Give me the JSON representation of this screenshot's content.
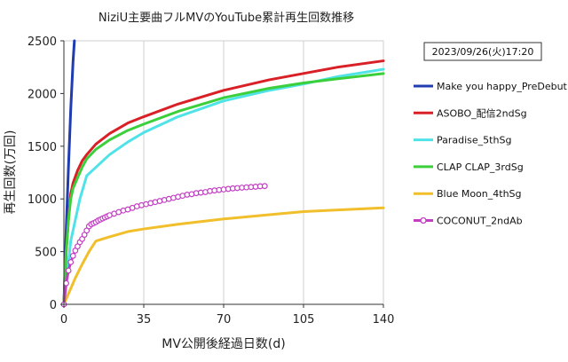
{
  "chart_data": {
    "type": "line",
    "title": "NiziU主要曲フルMVのYouTube累計再生回数推移",
    "xlabel": "MV公開後経過日数(d)",
    "ylabel": "再生回数(万回)",
    "xlim": [
      0,
      140
    ],
    "ylim": [
      0,
      2500
    ],
    "xticks": [
      0,
      35,
      70,
      105,
      140
    ],
    "yticks": [
      0,
      500,
      1000,
      1500,
      2000,
      2500
    ],
    "timestamp": "2023/09/26(火)17:20",
    "legend_position": "right",
    "grid": "vertical",
    "series": [
      {
        "name": "Make you happy_PreDebut",
        "color": "#1f3cb0",
        "marker": "none",
        "points": [
          [
            0,
            0
          ],
          [
            1,
            700
          ],
          [
            2,
            1300
          ],
          [
            3,
            1850
          ],
          [
            4,
            2300
          ],
          [
            4.6,
            2500
          ]
        ]
      },
      {
        "name": "ASOBO_配信2ndSg",
        "color": "#d92027",
        "marker": "none",
        "points": [
          [
            0,
            0
          ],
          [
            1,
            500
          ],
          [
            2,
            800
          ],
          [
            3,
            1050
          ],
          [
            4,
            1150
          ],
          [
            6,
            1270
          ],
          [
            8,
            1360
          ],
          [
            10,
            1420
          ],
          [
            14,
            1520
          ],
          [
            20,
            1620
          ],
          [
            28,
            1720
          ],
          [
            35,
            1780
          ],
          [
            50,
            1900
          ],
          [
            70,
            2030
          ],
          [
            90,
            2130
          ],
          [
            105,
            2190
          ],
          [
            120,
            2250
          ],
          [
            140,
            2310
          ]
        ]
      },
      {
        "name": "Paradise_5thSg",
        "color": "#4fe3e8",
        "marker": "none",
        "points": [
          [
            0,
            0
          ],
          [
            1,
            200
          ],
          [
            2,
            400
          ],
          [
            3,
            600
          ],
          [
            5,
            800
          ],
          [
            7,
            1000
          ],
          [
            10,
            1220
          ],
          [
            14,
            1300
          ],
          [
            20,
            1420
          ],
          [
            28,
            1540
          ],
          [
            35,
            1630
          ],
          [
            50,
            1780
          ],
          [
            70,
            1930
          ],
          [
            90,
            2030
          ],
          [
            105,
            2090
          ],
          [
            120,
            2160
          ],
          [
            140,
            2230
          ]
        ]
      },
      {
        "name": "CLAP CLAP_3rdSg",
        "color": "#3ccf3c",
        "marker": "none",
        "points": [
          [
            0,
            0
          ],
          [
            1,
            500
          ],
          [
            2,
            800
          ],
          [
            3,
            1000
          ],
          [
            4,
            1100
          ],
          [
            6,
            1200
          ],
          [
            8,
            1300
          ],
          [
            10,
            1380
          ],
          [
            14,
            1470
          ],
          [
            20,
            1560
          ],
          [
            28,
            1650
          ],
          [
            35,
            1710
          ],
          [
            50,
            1830
          ],
          [
            70,
            1960
          ],
          [
            90,
            2050
          ],
          [
            105,
            2100
          ],
          [
            120,
            2140
          ],
          [
            140,
            2190
          ]
        ]
      },
      {
        "name": "Blue Moon_4thSg",
        "color": "#f1bf2b",
        "marker": "none",
        "points": [
          [
            0,
            0
          ],
          [
            2,
            100
          ],
          [
            5,
            250
          ],
          [
            8,
            380
          ],
          [
            11,
            500
          ],
          [
            14,
            600
          ],
          [
            20,
            640
          ],
          [
            28,
            690
          ],
          [
            35,
            715
          ],
          [
            50,
            760
          ],
          [
            70,
            810
          ],
          [
            90,
            850
          ],
          [
            105,
            880
          ],
          [
            120,
            895
          ],
          [
            140,
            915
          ]
        ]
      },
      {
        "name": "COCONUT_2ndAb",
        "color": "#c23fc2",
        "marker": "circle",
        "points": [
          [
            0,
            0
          ],
          [
            1,
            200
          ],
          [
            2,
            320
          ],
          [
            3,
            400
          ],
          [
            4,
            460
          ],
          [
            5,
            510
          ],
          [
            6,
            550
          ],
          [
            7,
            590
          ],
          [
            8,
            620
          ],
          [
            9,
            660
          ],
          [
            10,
            700
          ],
          [
            11,
            740
          ],
          [
            12,
            760
          ],
          [
            13,
            770
          ],
          [
            14,
            780
          ],
          [
            15,
            795
          ],
          [
            16,
            805
          ],
          [
            17,
            815
          ],
          [
            18,
            825
          ],
          [
            19,
            835
          ],
          [
            20,
            845
          ],
          [
            22,
            860
          ],
          [
            24,
            875
          ],
          [
            26,
            890
          ],
          [
            28,
            900
          ],
          [
            30,
            915
          ],
          [
            32,
            930
          ],
          [
            34,
            940
          ],
          [
            36,
            950
          ],
          [
            38,
            960
          ],
          [
            40,
            970
          ],
          [
            42,
            980
          ],
          [
            44,
            990
          ],
          [
            46,
            1000
          ],
          [
            48,
            1010
          ],
          [
            50,
            1020
          ],
          [
            52,
            1030
          ],
          [
            54,
            1040
          ],
          [
            56,
            1045
          ],
          [
            58,
            1055
          ],
          [
            60,
            1060
          ],
          [
            62,
            1065
          ],
          [
            64,
            1075
          ],
          [
            66,
            1080
          ],
          [
            68,
            1085
          ],
          [
            70,
            1090
          ],
          [
            72,
            1095
          ],
          [
            74,
            1100
          ],
          [
            76,
            1103
          ],
          [
            78,
            1107
          ],
          [
            80,
            1110
          ],
          [
            82,
            1113
          ],
          [
            84,
            1116
          ],
          [
            86,
            1120
          ],
          [
            88,
            1122
          ]
        ]
      }
    ]
  }
}
